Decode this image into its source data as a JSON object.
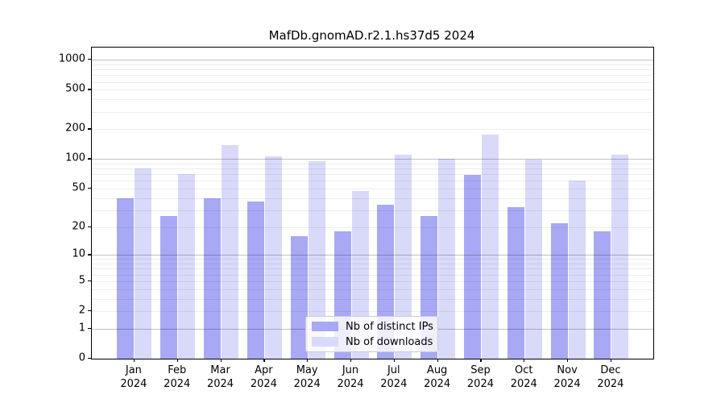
{
  "figure": {
    "title": "MafDb.gnomAD.r2.1.hs37d5 2024"
  },
  "chart_data": {
    "type": "bar",
    "title": "MafDb.gnomAD.r2.1.hs37d5 2024",
    "categories": [
      "Jan",
      "Feb",
      "Mar",
      "Apr",
      "May",
      "Jun",
      "Jul",
      "Aug",
      "Sep",
      "Oct",
      "Nov",
      "Dec"
    ],
    "category_year": "2024",
    "series": [
      {
        "name": "Nb of distinct IPs",
        "color": "#a8a8f5",
        "values": [
          40,
          26,
          40,
          37,
          16,
          18,
          34,
          26,
          69,
          32,
          22,
          18
        ]
      },
      {
        "name": "Nb of downloads",
        "color": "#d9d9fa",
        "values": [
          81,
          71,
          138,
          106,
          96,
          47,
          111,
          101,
          178,
          98,
          61,
          111
        ]
      }
    ],
    "xlabel": "",
    "ylabel": "",
    "yscale": "log1p",
    "y_ticks": [
      0,
      1,
      2,
      5,
      10,
      20,
      50,
      100,
      200,
      500,
      1000
    ],
    "ylim": [
      0,
      1330
    ],
    "grid": true,
    "legend_position": "lower center"
  },
  "legend": {
    "items": [
      {
        "label": "Nb of distinct IPs"
      },
      {
        "label": "Nb of downloads"
      }
    ]
  }
}
